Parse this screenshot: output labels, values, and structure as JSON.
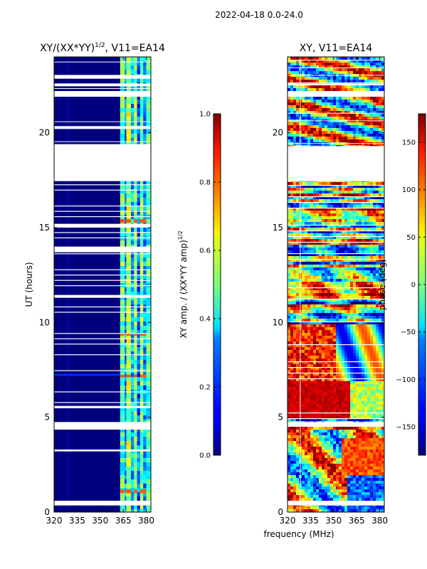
{
  "suptitle": "2022-04-18 0.0-24.0",
  "shared_xlabel": "frequency (MHz)",
  "chart_data": [
    {
      "type": "heatmap",
      "title": "XY/(XX*YY)^1/2, V11=EA14",
      "title_main": "XY/(XX*YY)",
      "title_exp": "1/2",
      "title_rest": ", V11=EA14",
      "xlabel": "frequency (MHz)",
      "ylabel": "UT (hours)",
      "xlim": [
        320,
        383
      ],
      "ylim": [
        0,
        24
      ],
      "xticks": [
        "320",
        "335",
        "350",
        "365",
        "380"
      ],
      "xtick_values": [
        320,
        335,
        350,
        365,
        380
      ],
      "yticks": [
        "0",
        "5",
        "10",
        "15",
        "20"
      ],
      "ytick_values": [
        0,
        5,
        10,
        15,
        20
      ],
      "data_gaps_hours": [
        [
          0.35,
          0.6
        ],
        [
          3.2,
          3.3
        ],
        [
          4.35,
          4.75
        ],
        [
          5.5,
          5.6
        ],
        [
          11.3,
          11.45
        ],
        [
          13.7,
          14.0
        ],
        [
          15.0,
          15.2
        ],
        [
          17.45,
          19.4
        ],
        [
          20.2,
          20.35
        ],
        [
          21.9,
          22.2
        ],
        [
          22.45,
          22.6
        ],
        [
          22.85,
          23.05
        ]
      ],
      "bright_band_mhz": [
        363,
        383
      ],
      "colorbar": {
        "label_main": "XY amp. / (XX*YY amp)",
        "label_exp": "1/2",
        "min": 0.0,
        "max": 1.0,
        "ticks": [
          "0.0",
          "0.2",
          "0.4",
          "0.6",
          "0.8",
          "1.0"
        ],
        "tick_values": [
          0,
          0.2,
          0.4,
          0.6,
          0.8,
          1.0
        ]
      }
    },
    {
      "type": "heatmap",
      "title": "XY, V11=EA14",
      "xlabel": "frequency (MHz)",
      "ylabel": "",
      "xlim": [
        320,
        383
      ],
      "ylim": [
        0,
        24
      ],
      "xticks": [
        "320",
        "335",
        "350",
        "365",
        "380"
      ],
      "xtick_values": [
        320,
        335,
        350,
        365,
        380
      ],
      "yticks": [
        "0",
        "5",
        "10",
        "15",
        "20"
      ],
      "ytick_values": [
        0,
        5,
        10,
        15,
        20
      ],
      "data_gaps_hours": [
        [
          0.35,
          0.6
        ],
        [
          4.5,
          4.75
        ],
        [
          17.45,
          19.3
        ],
        [
          21.9,
          22.2
        ],
        [
          22.5,
          22.6
        ]
      ],
      "colorbar": {
        "label": "phase (deg)",
        "min": -180,
        "max": 180,
        "ticks": [
          "−150",
          "−100",
          "−50",
          "0",
          "50",
          "100",
          "150"
        ],
        "tick_values": [
          -150,
          -100,
          -50,
          0,
          50,
          100,
          150
        ]
      }
    }
  ]
}
